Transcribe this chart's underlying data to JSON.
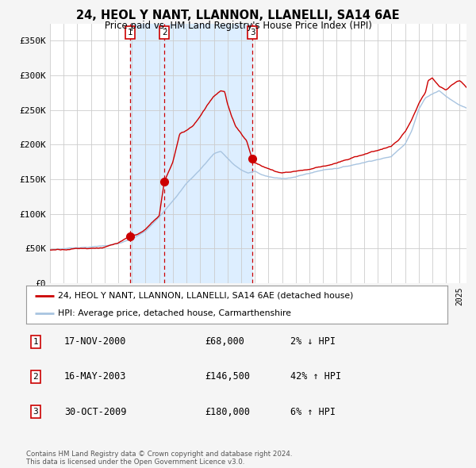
{
  "title": "24, HEOL Y NANT, LLANNON, LLANELLI, SA14 6AE",
  "subtitle": "Price paid vs. HM Land Registry's House Price Index (HPI)",
  "ylim": [
    0,
    375000
  ],
  "yticks": [
    0,
    50000,
    100000,
    150000,
    200000,
    250000,
    300000,
    350000
  ],
  "ytick_labels": [
    "£0",
    "£50K",
    "£100K",
    "£150K",
    "£200K",
    "£250K",
    "£300K",
    "£350K"
  ],
  "xlim_start": 1995.0,
  "xlim_end": 2025.5,
  "purchases": [
    {
      "date_num": 2000.88,
      "price": 68000,
      "label": "1"
    },
    {
      "date_num": 2003.37,
      "price": 146500,
      "label": "2"
    },
    {
      "date_num": 2009.83,
      "price": 180000,
      "label": "3"
    }
  ],
  "hpi_color": "#a8c4e0",
  "price_color": "#cc0000",
  "bg_color": "#f5f5f5",
  "plot_bg_color": "#ffffff",
  "shade_color": "#ddeeff",
  "grid_color": "#cccccc",
  "legend_label_price": "24, HEOL Y NANT, LLANNON, LLANELLI, SA14 6AE (detached house)",
  "legend_label_hpi": "HPI: Average price, detached house, Carmarthenshire",
  "table_rows": [
    {
      "num": "1",
      "date": "17-NOV-2000",
      "price": "£68,000",
      "hpi": "2% ↓ HPI"
    },
    {
      "num": "2",
      "date": "16-MAY-2003",
      "price": "£146,500",
      "hpi": "42% ↑ HPI"
    },
    {
      "num": "3",
      "date": "30-OCT-2009",
      "price": "£180,000",
      "hpi": "6% ↑ HPI"
    }
  ],
  "footer": "Contains HM Land Registry data © Crown copyright and database right 2024.\nThis data is licensed under the Open Government Licence v3.0.",
  "dashed_color": "#cc0000",
  "box_edge_color": "#cc0000",
  "box_face_color": "#ffffff"
}
